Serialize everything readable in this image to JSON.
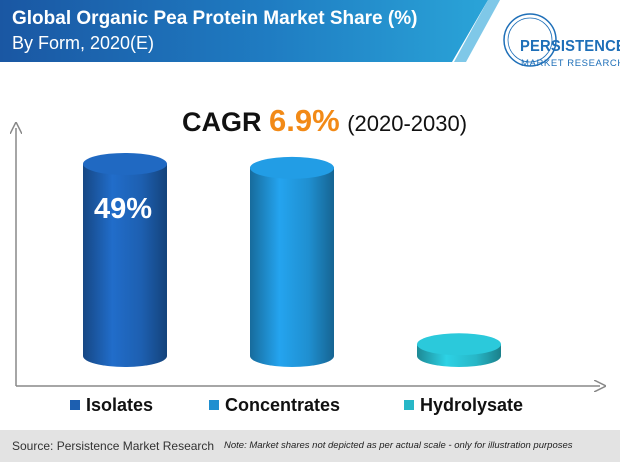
{
  "header": {
    "title": "Global Organic Pea Protein Market Share (%)",
    "subtitle": "By Form, 2020(E)"
  },
  "logo": {
    "name": "PERSISTENCE",
    "tagline": "MARKET RESEARCH"
  },
  "cagr": {
    "prefix": "CAGR",
    "value": "6.9%",
    "period": "(2020-2030)"
  },
  "chart_data": {
    "type": "bar",
    "title": "Global Organic Pea Protein Market Share (%)",
    "subtitle": "By Form, 2020(E)",
    "categories": [
      "Isolates",
      "Concentrates",
      "Hydrolysate"
    ],
    "values": [
      49,
      48,
      3
    ],
    "colors": [
      "#1d5fb0",
      "#1f8fd0",
      "#27b7c7"
    ],
    "data_labels": [
      "49%",
      "",
      ""
    ],
    "xlabel": "",
    "ylabel": "",
    "ylim": [
      0,
      55
    ],
    "grid": false,
    "legend": {
      "position": "bottom",
      "entries": [
        "Isolates",
        "Concentrates",
        "Hydrolysate"
      ]
    }
  },
  "footer": {
    "source": "Source: Persistence Market Research",
    "note": "Note: Market shares not depicted as per actual scale - only for illustration purposes"
  }
}
